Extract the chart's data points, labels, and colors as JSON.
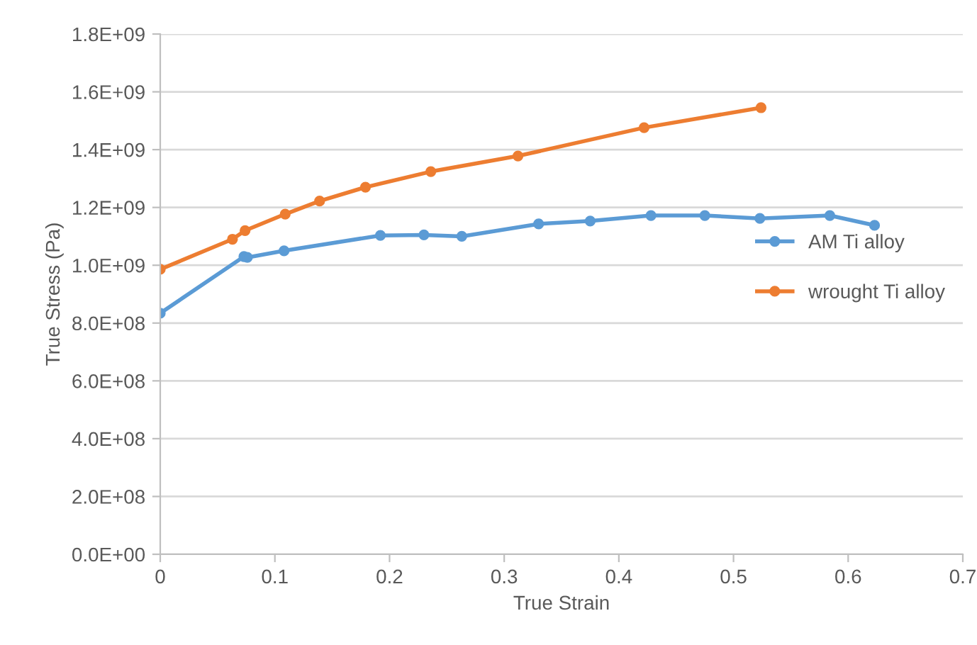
{
  "chart_data": {
    "type": "line",
    "xlabel": "True Strain",
    "ylabel": "True Stress (Pa)",
    "xlim": [
      0,
      0.7
    ],
    "xticks": [
      0,
      0.1,
      0.2,
      0.3,
      0.4,
      0.5,
      0.6,
      0.7
    ],
    "ylim": [
      0,
      1800000000
    ],
    "yticks": [
      {
        "value": 0,
        "label": "0.0E+00"
      },
      {
        "value": 200000000,
        "label": "2.0E+08"
      },
      {
        "value": 400000000,
        "label": "4.0E+08"
      },
      {
        "value": 600000000,
        "label": "6.0E+08"
      },
      {
        "value": 800000000,
        "label": "8.0E+08"
      },
      {
        "value": 1000000000,
        "label": "1.0E+09"
      },
      {
        "value": 1200000000,
        "label": "1.2E+09"
      },
      {
        "value": 1400000000,
        "label": "1.4E+09"
      },
      {
        "value": 1600000000,
        "label": "1.6E+09"
      },
      {
        "value": 1800000000,
        "label": "1.8E+09"
      }
    ],
    "grid": "y",
    "legend": "right",
    "marker": "circle",
    "line_style": "solid",
    "series": [
      {
        "name": "AM Ti alloy",
        "color": "#5b9bd5",
        "x": [
          0,
          0.073,
          0.076,
          0.108,
          0.192,
          0.23,
          0.263,
          0.33,
          0.375,
          0.428,
          0.475,
          0.523,
          0.584,
          0.623
        ],
        "values": [
          834000000,
          1030000000,
          1027000000,
          1050000000,
          1103000000,
          1105000000,
          1100000000,
          1143000000,
          1153000000,
          1172000000,
          1172000000,
          1162000000,
          1172000000,
          1138000000
        ]
      },
      {
        "name": "wrought Ti alloy",
        "color": "#ed7d31",
        "x": [
          0,
          0.063,
          0.074,
          0.109,
          0.139,
          0.179,
          0.236,
          0.312,
          0.422,
          0.524
        ],
        "values": [
          986000000,
          1090000000,
          1120000000,
          1177000000,
          1222000000,
          1270000000,
          1324000000,
          1378000000,
          1476000000,
          1545000000
        ]
      }
    ]
  }
}
